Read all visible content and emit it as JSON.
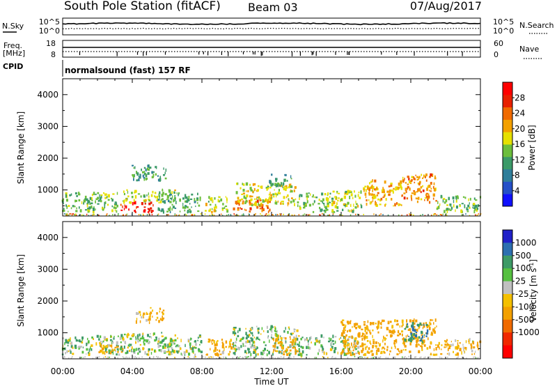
{
  "header": {
    "station": "South Pole Station (fitACF)",
    "beam": "Beam 03",
    "date": "07/Aug/2017"
  },
  "nsky_panel": {
    "left_label": "N.Sky",
    "right_label": "N.Search",
    "left_ticks": [
      "10^5",
      "10^0"
    ],
    "right_ticks": [
      "10^5",
      "10^0"
    ]
  },
  "freq_panel": {
    "left_label_line1": "Freq.",
    "left_label_line2": "[MHz]",
    "right_label": "Nave",
    "left_ticks": [
      "18",
      "8"
    ],
    "right_ticks": [
      "60",
      "0"
    ]
  },
  "cpid": {
    "label": "CPID",
    "value": "normalsound (fast) 157 RF"
  },
  "x_axis": {
    "label": "Time UT",
    "ticks": [
      "00:00",
      "04:00",
      "08:00",
      "12:00",
      "16:00",
      "20:00",
      "00:00"
    ]
  },
  "chart_data": [
    {
      "type": "heatmap",
      "ylabel": "Slant Range [km]",
      "ylim": [
        180,
        4500
      ],
      "yticks": [
        "1000",
        "2000",
        "3000",
        "4000"
      ],
      "xlim_hours": [
        0,
        24
      ],
      "colorbar": {
        "label": "Power [dB]",
        "range": [
          0,
          32
        ],
        "ticks": [
          "4",
          "8",
          "12",
          "16",
          "20",
          "24",
          "28"
        ],
        "colors": [
          "#1010ff",
          "#2550c8",
          "#2f7e9a",
          "#3b9a68",
          "#6cbe3c",
          "#e6e000",
          "#f3a000",
          "#f06a00",
          "#e82000",
          "#ff0000"
        ]
      },
      "blobs": [
        {
          "t": [
            0.0,
            3.2
          ],
          "r": [
            300,
            900
          ],
          "value": 14
        },
        {
          "t": [
            3.3,
            5.2
          ],
          "r": [
            300,
            600
          ],
          "value": 28
        },
        {
          "t": [
            3.5,
            6.5
          ],
          "r": [
            600,
            1000
          ],
          "value": 16
        },
        {
          "t": [
            4.0,
            6.0
          ],
          "r": [
            1300,
            1800
          ],
          "value": 12
        },
        {
          "t": [
            5.5,
            8.0
          ],
          "r": [
            300,
            900
          ],
          "value": 12
        },
        {
          "t": [
            8.2,
            9.5
          ],
          "r": [
            300,
            800
          ],
          "value": 16
        },
        {
          "t": [
            9.8,
            12.0
          ],
          "r": [
            300,
            700
          ],
          "value": 24
        },
        {
          "t": [
            10.0,
            13.5
          ],
          "r": [
            500,
            1200
          ],
          "value": 18
        },
        {
          "t": [
            11.8,
            13.2
          ],
          "r": [
            1100,
            1500
          ],
          "value": 12
        },
        {
          "t": [
            13.5,
            15.5
          ],
          "r": [
            300,
            900
          ],
          "value": 14
        },
        {
          "t": [
            15.5,
            17.2
          ],
          "r": [
            300,
            1000
          ],
          "value": 16
        },
        {
          "t": [
            17.3,
            19.5
          ],
          "r": [
            500,
            1300
          ],
          "value": 20
        },
        {
          "t": [
            19.5,
            21.5
          ],
          "r": [
            600,
            1500
          ],
          "value": 22
        },
        {
          "t": [
            21.5,
            24.0
          ],
          "r": [
            300,
            800
          ],
          "value": 14
        }
      ]
    },
    {
      "type": "heatmap",
      "ylabel": "Slant Range [km]",
      "ylim": [
        180,
        4500
      ],
      "yticks": [
        "1000",
        "2000",
        "3000",
        "4000"
      ],
      "xlim_hours": [
        0,
        24
      ],
      "colorbar": {
        "label": "Velocity [m s-1]",
        "ticks": [
          "1000",
          "500",
          "100",
          "25",
          "-25",
          "-100",
          "-500",
          "-1000"
        ],
        "colors": [
          "#2020c8",
          "#2c6fb0",
          "#3d9a66",
          "#56c040",
          "#c0c0c0",
          "#f4c000",
          "#f3a000",
          "#f06a00",
          "#f02800",
          "#ff0000"
        ]
      },
      "blobs": [
        {
          "t": [
            0.0,
            3.2
          ],
          "r": [
            300,
            900
          ],
          "value": 60
        },
        {
          "t": [
            2.0,
            3.5
          ],
          "r": [
            300,
            600
          ],
          "value": -150
        },
        {
          "t": [
            3.3,
            6.5
          ],
          "r": [
            300,
            1000
          ],
          "value": 60
        },
        {
          "t": [
            4.2,
            5.8
          ],
          "r": [
            1300,
            1800
          ],
          "value": -150
        },
        {
          "t": [
            5.5,
            8.0
          ],
          "r": [
            300,
            900
          ],
          "value": 60
        },
        {
          "t": [
            8.2,
            9.8
          ],
          "r": [
            300,
            800
          ],
          "value": -150
        },
        {
          "t": [
            9.8,
            13.5
          ],
          "r": [
            300,
            1200
          ],
          "value": 60
        },
        {
          "t": [
            12.0,
            13.5
          ],
          "r": [
            300,
            900
          ],
          "value": -150
        },
        {
          "t": [
            13.5,
            17.0
          ],
          "r": [
            300,
            900
          ],
          "value": 60
        },
        {
          "t": [
            16.0,
            21.5
          ],
          "r": [
            300,
            1400
          ],
          "value": -180
        },
        {
          "t": [
            19.6,
            21.0
          ],
          "r": [
            700,
            1300
          ],
          "value": 500
        },
        {
          "t": [
            21.5,
            24.0
          ],
          "r": [
            300,
            800
          ],
          "value": -120
        }
      ]
    }
  ]
}
